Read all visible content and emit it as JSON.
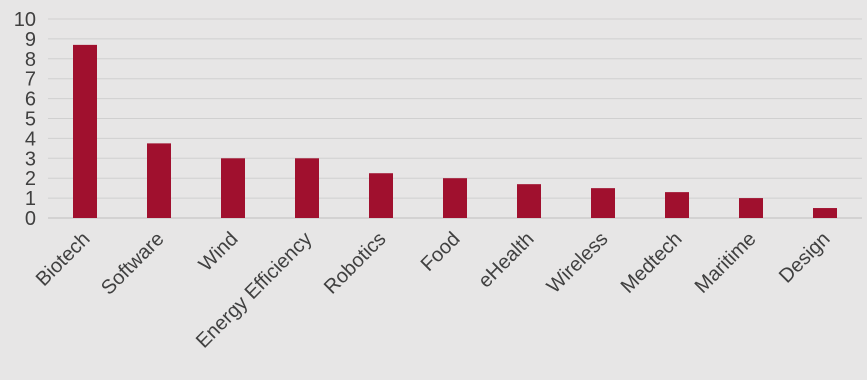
{
  "chart_data": {
    "type": "bar",
    "title": "",
    "xlabel": "",
    "ylabel": "",
    "categories": [
      "Biotech",
      "Software",
      "Wind",
      "Energy Efficiency",
      "Robotics",
      "Food",
      "eHealth",
      "Wireless",
      "Medtech",
      "Maritime",
      "Design"
    ],
    "values": [
      8.7,
      3.75,
      3.0,
      3.0,
      2.25,
      2.0,
      1.7,
      1.5,
      1.3,
      1.0,
      0.5
    ],
    "ylim": [
      0,
      10
    ],
    "yticks": [
      "0",
      "1",
      "2",
      "3",
      "4",
      "5",
      "6",
      "7",
      "8",
      "9",
      "10"
    ],
    "grid": true,
    "legend": "none",
    "bar_color": "#a0102e"
  }
}
